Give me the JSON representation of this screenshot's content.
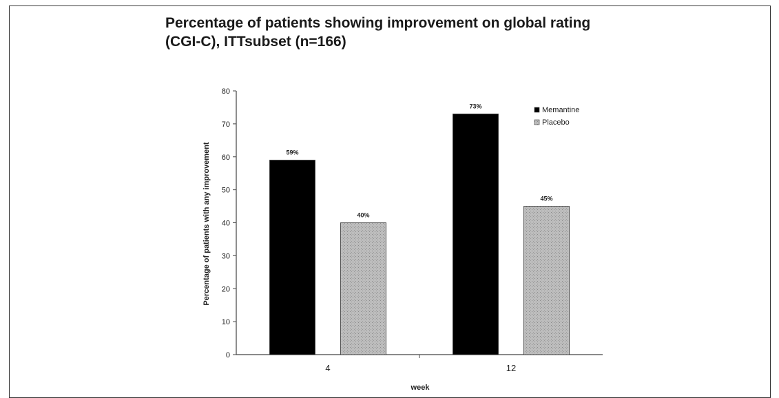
{
  "chart_data": {
    "type": "bar",
    "title_lines": [
      "Percentage of patients showing improvement on global rating",
      "(CGI-C), ITTsubset (n=166)"
    ],
    "xlabel": "week",
    "ylabel": "Percentage of patients with any improvement",
    "categories": [
      "4",
      "12"
    ],
    "ylim": [
      0,
      80
    ],
    "yticks": [
      0,
      10,
      20,
      30,
      40,
      50,
      60,
      70,
      80
    ],
    "grid": false,
    "legend_position": "top-right",
    "series": [
      {
        "name": "Memantine",
        "values": [
          59,
          73
        ],
        "labels": [
          "59%",
          "73%"
        ],
        "color": "#000000"
      },
      {
        "name": "Placebo",
        "values": [
          40,
          45
        ],
        "labels": [
          "40%",
          "45%"
        ],
        "color": "#b0b0b0"
      }
    ]
  }
}
